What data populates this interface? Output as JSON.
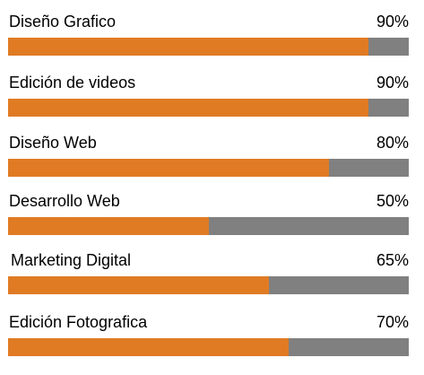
{
  "colors": {
    "fill": "#e07b24",
    "track": "#808080"
  },
  "skills": [
    {
      "label": "Diseño Grafico",
      "percent": "90%",
      "value": 90
    },
    {
      "label": "Edición de videos",
      "percent": "90%",
      "value": 90
    },
    {
      "label": "Diseño Web",
      "percent": "80%",
      "value": 80
    },
    {
      "label": "Desarrollo Web",
      "percent": "50%",
      "value": 50
    },
    {
      "label": "Marketing Digital",
      "percent": "65%",
      "value": 65
    },
    {
      "label": "Edición Fotografica",
      "percent": "70%",
      "value": 70
    }
  ]
}
